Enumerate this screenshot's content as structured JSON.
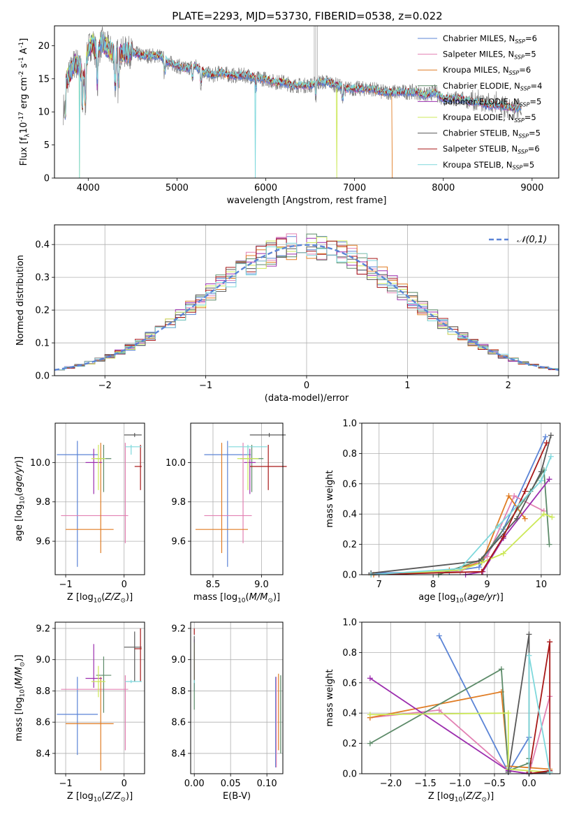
{
  "figure": {
    "title": "PLATE=2293, MJD=53730, FIBERID=0538, z=0.022",
    "colors": [
      "#5b84d6",
      "#e280b2",
      "#e07c24",
      "#5c8a68",
      "#9c2eae",
      "#cce858",
      "#585858",
      "#a81818",
      "#7ed8dc"
    ]
  },
  "chart_data": [
    {
      "id": "spectrum",
      "type": "line",
      "title": "PLATE=2293, MJD=53730, FIBERID=0538, z=0.022",
      "xlabel": "wavelength [Angstrom, rest frame]",
      "ylabel": "Flux [f$_\\lambda$10$^{-17}$ erg cm$^{-2}$ s$^{-1}$ A$^{-1}$]",
      "xlim": [
        3620,
        9300
      ],
      "ylim": [
        0,
        23
      ],
      "xticks": [
        4000,
        5000,
        6000,
        7000,
        8000,
        9000
      ],
      "yticks": [
        0,
        5,
        10,
        15,
        20
      ],
      "grid": false,
      "legend_position": "top-right",
      "legend": [
        {
          "model": "Chabrier MILES",
          "nssp": "6"
        },
        {
          "model": "Salpeter MILES",
          "nssp": "5"
        },
        {
          "model": "Kroupa MILES",
          "nssp": "6"
        },
        {
          "model": "Chabrier ELODIE",
          "nssp": "4"
        },
        {
          "model": "Salpeter ELODIE",
          "nssp": "5"
        },
        {
          "model": "Kroupa ELODIE",
          "nssp": "5"
        },
        {
          "model": "Chabrier STELIB",
          "nssp": "5"
        },
        {
          "model": "Salpeter STELIB",
          "nssp": "6"
        },
        {
          "model": "Kroupa STELIB",
          "nssp": "5"
        }
      ],
      "data_series": {
        "name": "data",
        "x": [
          3750,
          3800,
          3850,
          3900,
          3950,
          4000,
          4050,
          4100,
          4150,
          4200,
          4300,
          4400,
          4500,
          4600,
          4700,
          4800,
          4900,
          5000,
          5100,
          5200,
          5300,
          5400,
          5500,
          5600,
          5700,
          5800,
          5900,
          6000,
          6100,
          6200,
          6300,
          6400,
          6500,
          6600,
          6700,
          6800,
          6900,
          7000,
          7100,
          7200,
          7300,
          7400,
          7500,
          7600,
          7700,
          7800,
          7900,
          8000,
          8100,
          8200,
          8300,
          8400,
          8500,
          8600,
          8700,
          8800
        ],
        "y": [
          14.5,
          16,
          17.5,
          17,
          15,
          19.5,
          20.5,
          18.5,
          20.5,
          20,
          18.5,
          19,
          19,
          18.5,
          18.5,
          18.5,
          17.5,
          17,
          16.5,
          17,
          16,
          15.5,
          16,
          15.5,
          15.5,
          15.5,
          15,
          15,
          14.5,
          14.5,
          14,
          14,
          14,
          14.5,
          14.5,
          14,
          13.5,
          13.5,
          13.5,
          13.5,
          13,
          13,
          13,
          13,
          13,
          12.5,
          13,
          12,
          12,
          12,
          11.5,
          11.5,
          11,
          11,
          10.8,
          10.5
        ]
      },
      "model_cutoffs": [
        {
          "series": "Kroupa ELODIE",
          "drops_at": [
            3900,
            6800
          ]
        },
        {
          "series": "Kroupa STELIB",
          "drops_at": [
            3900,
            5880
          ]
        },
        {
          "series": "Kroupa MILES",
          "ends_at": 7420
        }
      ]
    },
    {
      "id": "residuals",
      "type": "histogram",
      "xlabel": "(data-model)/error",
      "ylabel": "Normed distribution",
      "xlim": [
        -2.5,
        2.5
      ],
      "ylim": [
        0,
        0.46
      ],
      "xticks": [
        -2,
        -1,
        0,
        1,
        2
      ],
      "yticks": [
        0.0,
        0.1,
        0.2,
        0.3,
        0.4
      ],
      "grid": true,
      "legend_position": "top-right",
      "reference_curve": {
        "label": "$\\mathcal{N}(0,1)$",
        "mean": 0,
        "sigma": 1,
        "style": "dashed",
        "color": "#5b84d6"
      },
      "bin_width": 0.1,
      "x_start": -2.5,
      "n_bins": 50
    },
    {
      "id": "age-vs-Z",
      "type": "scatter",
      "xlabel": "Z [log$_{10}$($Z/Z_\\odot$)]",
      "ylabel": "age  [log$_{10}$($age/yr$)]",
      "xlim": [
        -1.18,
        0.35
      ],
      "ylim": [
        9.43,
        10.2
      ],
      "xticks": [
        -1,
        0
      ],
      "yticks": [
        9.6,
        9.8,
        10.0
      ],
      "grid": true,
      "points": [
        {
          "x": -0.8,
          "y": 10.04,
          "xerr": [
            0.35,
            0.35
          ],
          "yerr": [
            0.57,
            0.07
          ]
        },
        {
          "x": 0.02,
          "y": 9.73,
          "xerr": [
            1.1,
            0.05
          ],
          "yerr": [
            0.14,
            0.37
          ]
        },
        {
          "x": -0.4,
          "y": 9.66,
          "xerr": [
            0.6,
            0.22
          ],
          "yerr": [
            0.12,
            0.44
          ]
        },
        {
          "x": -0.35,
          "y": 10.02,
          "xerr": [
            0.13,
            0.13
          ],
          "yerr": [
            0.17,
            0.07
          ]
        },
        {
          "x": -0.52,
          "y": 10.0,
          "xerr": [
            0.14,
            0.14
          ],
          "yerr": [
            0.16,
            0.07
          ]
        },
        {
          "x": -0.44,
          "y": 10.02,
          "xerr": [
            0.12,
            0.12
          ],
          "yerr": [
            0.16,
            0.07
          ]
        },
        {
          "x": 0.18,
          "y": 10.14,
          "xerr": [
            0.18,
            0.12
          ],
          "yerr": [
            0.01,
            0.01
          ]
        },
        {
          "x": 0.28,
          "y": 9.98,
          "xerr": [
            0.1,
            0.02
          ],
          "yerr": [
            0.12,
            0.11
          ]
        },
        {
          "x": 0.12,
          "y": 10.08,
          "xerr": [
            0.1,
            0.18
          ],
          "yerr": [
            0.04,
            0.01
          ]
        }
      ]
    },
    {
      "id": "age-vs-mass",
      "type": "scatter",
      "xlabel": "mass [log$_{10}$($M/M_\\odot$)]",
      "ylabel": "",
      "xlim": [
        8.27,
        9.22
      ],
      "ylim": [
        9.43,
        10.2
      ],
      "xticks": [
        8.5,
        9.0
      ],
      "yticks": [
        9.6,
        9.8,
        10.0
      ],
      "grid": true,
      "points": [
        {
          "x": 8.65,
          "y": 10.04,
          "xerr": [
            0.24,
            0.24
          ],
          "yerr": [
            0.57,
            0.07
          ]
        },
        {
          "x": 8.81,
          "y": 9.73,
          "xerr": [
            0.4,
            0.09
          ],
          "yerr": [
            0.14,
            0.37
          ]
        },
        {
          "x": 8.59,
          "y": 9.66,
          "xerr": [
            0.27,
            0.27
          ],
          "yerr": [
            0.12,
            0.44
          ]
        },
        {
          "x": 8.9,
          "y": 10.02,
          "xerr": [
            0.12,
            0.12
          ],
          "yerr": [
            0.17,
            0.07
          ]
        },
        {
          "x": 8.88,
          "y": 10.0,
          "xerr": [
            0.06,
            0.06
          ],
          "yerr": [
            0.16,
            0.07
          ]
        },
        {
          "x": 8.86,
          "y": 10.02,
          "xerr": [
            0.11,
            0.11
          ],
          "yerr": [
            0.16,
            0.07
          ]
        },
        {
          "x": 9.08,
          "y": 10.14,
          "xerr": [
            0.2,
            0.17
          ],
          "yerr": [
            0.01,
            0.01
          ]
        },
        {
          "x": 9.07,
          "y": 9.98,
          "xerr": [
            0.19,
            0.19
          ],
          "yerr": [
            0.12,
            0.11
          ]
        },
        {
          "x": 8.86,
          "y": 10.08,
          "xerr": [
            0.2,
            0.2
          ],
          "yerr": [
            0.04,
            0.01
          ]
        }
      ]
    },
    {
      "id": "weight-vs-age",
      "type": "line",
      "xlabel": "age  [log$_{10}$($age/yr$)]",
      "ylabel": "mass weight",
      "xlim": [
        6.68,
        10.35
      ],
      "ylim": [
        0,
        1
      ],
      "xticks": [
        7,
        8,
        9,
        10
      ],
      "yticks": [
        0.0,
        0.2,
        0.4,
        0.6,
        0.8,
        1.0
      ],
      "grid": true,
      "series": [
        {
          "x": [
            6.85,
            8.3,
            8.85,
            9.3,
            10.08
          ],
          "y": [
            0.01,
            0.02,
            0.05,
            0.3,
            0.91
          ]
        },
        {
          "x": [
            6.85,
            8.5,
            9.0,
            9.5,
            10.05
          ],
          "y": [
            0.0,
            0.02,
            0.12,
            0.52,
            0.42
          ]
        },
        {
          "x": [
            6.9,
            8.3,
            8.9,
            9.4,
            9.7
          ],
          "y": [
            0.0,
            0.03,
            0.08,
            0.52,
            0.37
          ]
        },
        {
          "x": [
            8.1,
            8.9,
            9.8,
            10.05,
            10.15
          ],
          "y": [
            0.0,
            0.1,
            0.55,
            0.69,
            0.2
          ]
        },
        {
          "x": [
            8.6,
            8.92,
            9.3,
            10.15
          ],
          "y": [
            0.0,
            0.02,
            0.24,
            0.63
          ]
        },
        {
          "x": [
            6.85,
            8.5,
            8.9,
            9.3,
            10.05,
            10.2
          ],
          "y": [
            0.0,
            0.03,
            0.08,
            0.14,
            0.4,
            0.38
          ]
        },
        {
          "x": [
            6.85,
            8.85,
            9.55,
            10.0,
            10.18
          ],
          "y": [
            0.01,
            0.09,
            0.37,
            0.68,
            0.92
          ]
        },
        {
          "x": [
            6.85,
            8.9,
            9.3,
            9.7,
            10.1
          ],
          "y": [
            0.0,
            0.02,
            0.25,
            0.55,
            0.87
          ]
        },
        {
          "x": [
            6.85,
            8.5,
            9.2,
            10.0,
            10.18
          ],
          "y": [
            0.0,
            0.04,
            0.32,
            0.62,
            0.78
          ]
        }
      ]
    },
    {
      "id": "mass-vs-Z",
      "type": "scatter",
      "xlabel": "Z [log$_{10}$($Z/Z_\\odot$)]",
      "ylabel": "mass [log$_{10}$($M/M_\\odot$)]",
      "xlim": [
        -1.18,
        0.35
      ],
      "ylim": [
        8.27,
        9.24
      ],
      "xticks": [
        -1,
        0
      ],
      "yticks": [
        8.4,
        8.6,
        8.8,
        9.0,
        9.2
      ],
      "grid": true,
      "points": [
        {
          "x": -0.8,
          "y": 8.65,
          "xerr": [
            0.35,
            0.35
          ],
          "yerr": [
            0.26,
            0.24
          ]
        },
        {
          "x": 0.02,
          "y": 8.81,
          "xerr": [
            1.1,
            0.05
          ],
          "yerr": [
            0.39,
            0.09
          ]
        },
        {
          "x": -0.4,
          "y": 8.59,
          "xerr": [
            0.6,
            0.22
          ],
          "yerr": [
            0.3,
            0.3
          ]
        },
        {
          "x": -0.35,
          "y": 8.9,
          "xerr": [
            0.13,
            0.13
          ],
          "yerr": [
            0.24,
            0.12
          ]
        },
        {
          "x": -0.52,
          "y": 8.88,
          "xerr": [
            0.14,
            0.14
          ],
          "yerr": [
            0.06,
            0.22
          ]
        },
        {
          "x": -0.44,
          "y": 8.86,
          "xerr": [
            0.12,
            0.12
          ],
          "yerr": [
            0.1,
            0.1
          ]
        },
        {
          "x": 0.18,
          "y": 9.08,
          "xerr": [
            0.18,
            0.12
          ],
          "yerr": [
            0.22,
            0.1
          ]
        },
        {
          "x": 0.28,
          "y": 9.07,
          "xerr": [
            0.1,
            0.02
          ],
          "yerr": [
            0.21,
            0.13
          ]
        },
        {
          "x": 0.12,
          "y": 8.86,
          "xerr": [
            0.1,
            0.18
          ],
          "yerr": [
            0.01,
            0.01
          ]
        }
      ]
    },
    {
      "id": "mass-vs-EBV",
      "type": "scatter",
      "xlabel": "E(B-V)",
      "ylabel": "",
      "xlim": [
        -0.005,
        0.122
      ],
      "ylim": [
        8.27,
        9.24
      ],
      "xticks": [
        0.0,
        0.05,
        0.1
      ],
      "xtick_labels": [
        "0.00",
        "0.05",
        "0.10"
      ],
      "yticks": [
        8.4,
        8.6,
        8.8,
        9.0,
        9.2
      ],
      "grid": true,
      "points": [
        {
          "x": 0.0,
          "y": 8.96,
          "yerr": [
            0.16,
            0.09
          ]
        },
        {
          "x": 0.0,
          "y": 8.92,
          "yerr": [
            0.04,
            0.04
          ]
        },
        {
          "x": 0.0,
          "y": 8.88,
          "yerr": [
            0.02,
            0.02
          ]
        },
        {
          "x": 0.0,
          "y": 8.82,
          "yerr": [
            0.14,
            0.05
          ]
        },
        {
          "x": 0.0,
          "y": 8.99,
          "yerr": [
            0.12,
            0.14
          ]
        },
        {
          "x": 0.0,
          "y": 8.98,
          "yerr": [
            0.12,
            0.13
          ]
        },
        {
          "x": 0.0,
          "y": 9.01,
          "yerr": [
            0.16,
            0.14
          ]
        },
        {
          "x": 0.0,
          "y": 9.18,
          "yerr": [
            0.02,
            0.02
          ]
        },
        {
          "x": 0.0,
          "y": 8.86,
          "yerr": [
            0.01,
            0.01
          ]
        },
        {
          "x": 0.112,
          "y": 8.55,
          "yerr": [
            0.24,
            0.34
          ]
        },
        {
          "x": 0.113,
          "y": 8.6,
          "yerr": [
            0.29,
            0.29
          ]
        },
        {
          "x": 0.116,
          "y": 8.62,
          "yerr": [
            0.2,
            0.29
          ]
        },
        {
          "x": 0.119,
          "y": 8.6,
          "yerr": [
            0.2,
            0.3
          ]
        }
      ]
    },
    {
      "id": "weight-vs-Z",
      "type": "line",
      "xlabel": "Z [log$_{10}$($Z/Z_\\odot$)]",
      "ylabel": "mass weight",
      "xlim": [
        -2.42,
        0.45
      ],
      "ylim": [
        0,
        1
      ],
      "xticks": [
        -2.0,
        -1.5,
        -1.0,
        -0.5,
        0.0
      ],
      "yticks": [
        0.0,
        0.2,
        0.4,
        0.6,
        0.8,
        1.0
      ],
      "grid": true,
      "series": [
        {
          "x": [
            -1.3,
            -0.3,
            0.0,
            0.0,
            0.3
          ],
          "y": [
            0.91,
            0.01,
            0.24,
            0.0,
            0.01
          ]
        },
        {
          "x": [
            -2.3,
            -1.3,
            -0.3,
            0.0,
            0.3
          ],
          "y": [
            0.37,
            0.42,
            0.02,
            0.0,
            0.51
          ]
        },
        {
          "x": [
            -2.3,
            -0.4,
            -0.3,
            0.0,
            0.3
          ],
          "y": [
            0.37,
            0.54,
            0.05,
            0.04,
            0.03
          ]
        },
        {
          "x": [
            -2.3,
            -0.4,
            -0.3,
            0.0,
            0.0
          ],
          "y": [
            0.2,
            0.69,
            0.02,
            0.07,
            0.1
          ]
        },
        {
          "x": [
            -2.3,
            -0.3,
            0.0,
            0.3
          ],
          "y": [
            0.63,
            0.02,
            0.0,
            0.01
          ]
        },
        {
          "x": [
            -2.3,
            -0.3,
            -0.3,
            0.0,
            0.3
          ],
          "y": [
            0.39,
            0.4,
            0.03,
            0.02,
            0.01
          ]
        },
        {
          "x": [
            -0.3,
            0.0,
            0.0,
            0.3
          ],
          "y": [
            0.01,
            0.92,
            0.0,
            0.01
          ]
        },
        {
          "x": [
            0.0,
            0.3,
            0.3,
            0.0
          ],
          "y": [
            0.01,
            0.87,
            0.02,
            0.0
          ]
        },
        {
          "x": [
            0.0,
            0.0,
            0.3
          ],
          "y": [
            0.0,
            0.78,
            0.01
          ]
        }
      ]
    }
  ]
}
